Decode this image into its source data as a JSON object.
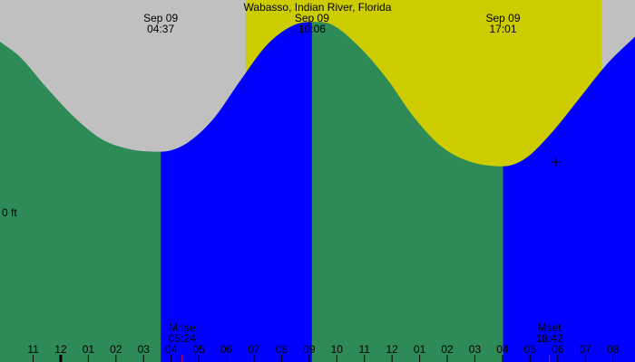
{
  "chart_data": {
    "type": "area",
    "title": "Wabasso, Indian River, Florida",
    "y_unit": "ft",
    "y_tick_labels": [
      "0 ft"
    ],
    "x_tick_labels": [
      "11",
      "12",
      "01",
      "02",
      "03",
      "04",
      "05",
      "06",
      "07",
      "08",
      "09",
      "10",
      "11",
      "12",
      "01",
      "02",
      "03",
      "04",
      "05",
      "06",
      "07",
      "08",
      "09"
    ],
    "x_range_hours": [
      -1.2,
      21.8
    ],
    "daylight_hours": [
      7.7,
      20.6
    ],
    "y_range_ft": [
      -1.06,
      0.42
    ],
    "series": [
      {
        "x": -1.2,
        "y": 0.25
      },
      {
        "x": -0.5,
        "y": 0.19
      },
      {
        "x": 0.5,
        "y": 0.06
      },
      {
        "x": 1.5,
        "y": -0.06
      },
      {
        "x": 2.5,
        "y": -0.15
      },
      {
        "x": 3.5,
        "y": -0.19
      },
      {
        "x": 4.62,
        "y": -0.2
      },
      {
        "x": 5.5,
        "y": -0.17
      },
      {
        "x": 6.5,
        "y": -0.07
      },
      {
        "x": 7.5,
        "y": 0.09
      },
      {
        "x": 8.5,
        "y": 0.24
      },
      {
        "x": 9.5,
        "y": 0.32
      },
      {
        "x": 10.1,
        "y": 0.33
      },
      {
        "x": 10.8,
        "y": 0.32
      },
      {
        "x": 11.8,
        "y": 0.23
      },
      {
        "x": 12.8,
        "y": 0.1
      },
      {
        "x": 13.8,
        "y": -0.06
      },
      {
        "x": 14.8,
        "y": -0.18
      },
      {
        "x": 15.8,
        "y": -0.24
      },
      {
        "x": 17.02,
        "y": -0.26
      },
      {
        "x": 17.8,
        "y": -0.23
      },
      {
        "x": 18.8,
        "y": -0.12
      },
      {
        "x": 19.8,
        "y": 0.02
      },
      {
        "x": 20.8,
        "y": 0.16
      },
      {
        "x": 21.8,
        "y": 0.27
      }
    ],
    "extremes": [
      {
        "date": "Sep 09",
        "time": "04:37",
        "x": 4.62
      },
      {
        "date": "Sep 09",
        "time": "10:06",
        "x": 10.1
      },
      {
        "date": "Sep 09",
        "time": "17:01",
        "x": 17.02
      }
    ],
    "moon": [
      {
        "label": "Mrise",
        "time": "05:24",
        "x": 5.4
      },
      {
        "label": "Mset",
        "time": "18:42",
        "x": 18.7
      }
    ],
    "colors": {
      "night": "#c0c0c0",
      "day": "#cccc00",
      "falling": "#2e8b57",
      "rising": "#0000ff",
      "moon_tick": "#ff0000"
    }
  }
}
